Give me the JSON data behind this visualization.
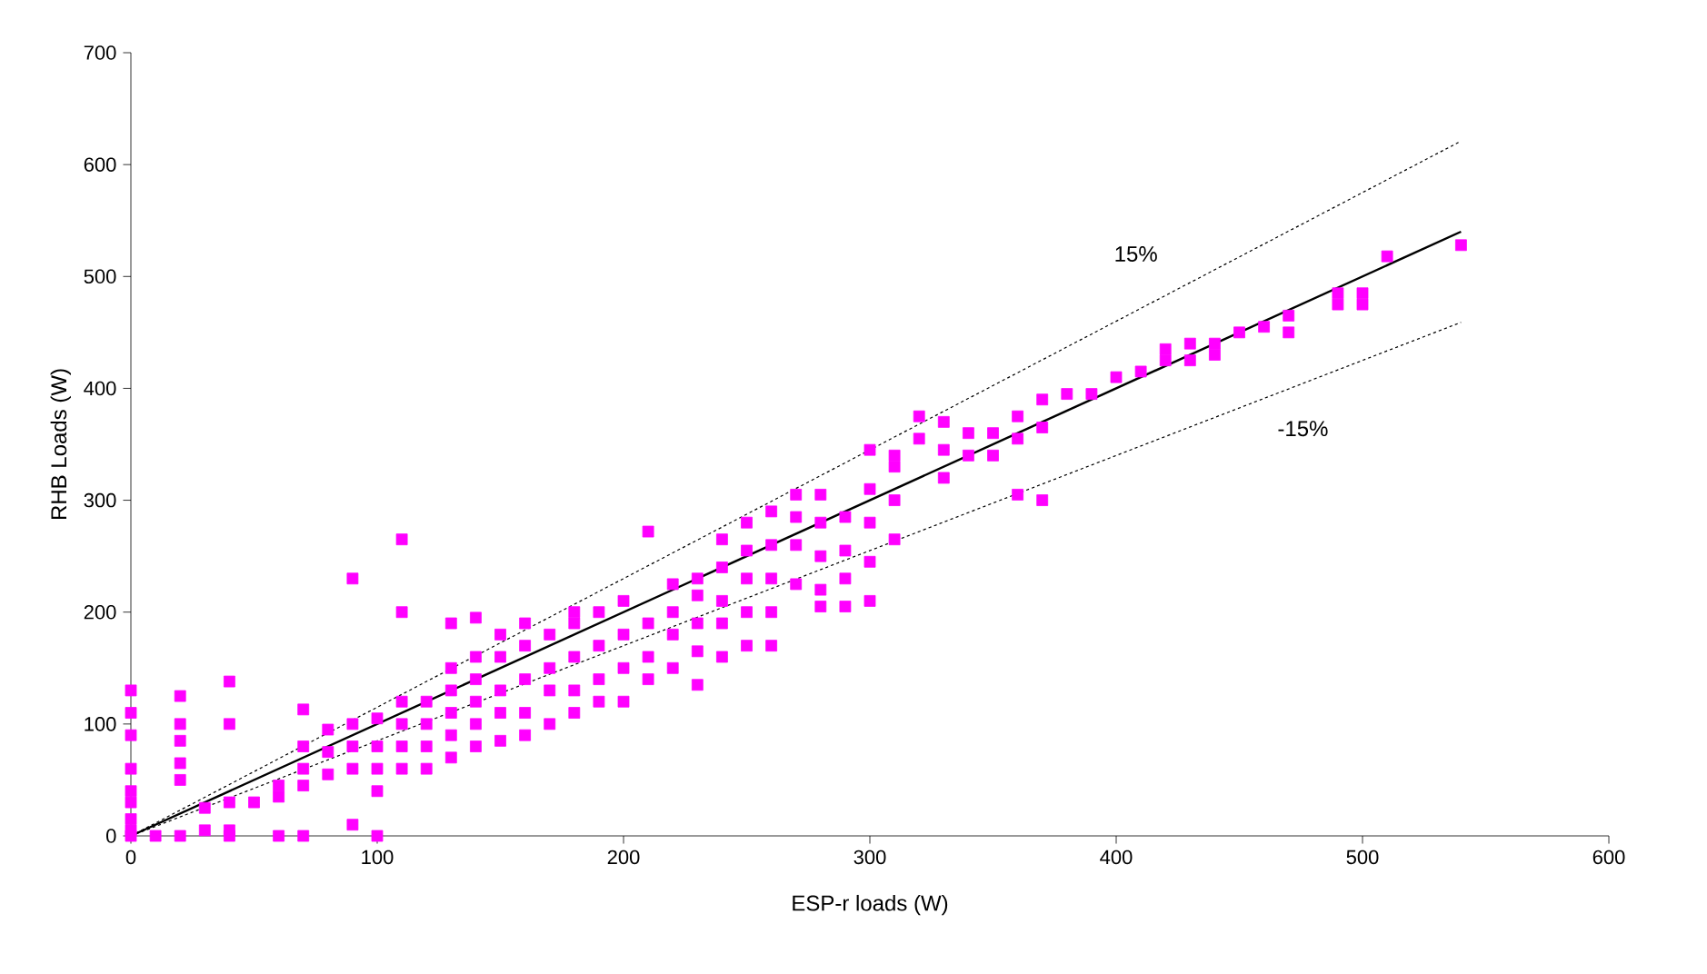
{
  "chart_data": {
    "type": "scatter",
    "xlabel": "ESP-r loads (W)",
    "ylabel": "RHB Loads (W)",
    "xlim": [
      0,
      600
    ],
    "ylim": [
      0,
      700
    ],
    "xticks": [
      0,
      100,
      200,
      300,
      400,
      500,
      600
    ],
    "yticks": [
      0,
      100,
      200,
      300,
      400,
      500,
      600,
      700
    ],
    "grid": false,
    "series": [
      {
        "color": "#ff00ff",
        "marker": "square",
        "x": [
          0,
          0,
          0,
          0,
          0,
          0,
          0,
          0,
          0,
          10,
          20,
          20,
          20,
          20,
          20,
          20,
          30,
          30,
          40,
          40,
          40,
          40,
          40,
          50,
          60,
          60,
          60,
          70,
          70,
          70,
          70,
          70,
          80,
          80,
          80,
          90,
          90,
          90,
          90,
          90,
          100,
          100,
          100,
          100,
          100,
          110,
          110,
          110,
          110,
          110,
          110,
          120,
          120,
          120,
          120,
          130,
          130,
          130,
          130,
          130,
          130,
          140,
          140,
          140,
          140,
          140,
          140,
          150,
          150,
          150,
          150,
          150,
          160,
          160,
          160,
          160,
          160,
          170,
          170,
          170,
          170,
          180,
          180,
          180,
          180,
          180,
          190,
          190,
          190,
          190,
          200,
          200,
          200,
          200,
          210,
          210,
          210,
          210,
          220,
          220,
          220,
          220,
          230,
          230,
          230,
          230,
          230,
          240,
          240,
          240,
          240,
          240,
          250,
          250,
          250,
          250,
          250,
          260,
          260,
          260,
          260,
          260,
          270,
          270,
          270,
          270,
          280,
          280,
          280,
          280,
          280,
          290,
          290,
          290,
          290,
          300,
          300,
          300,
          300,
          300,
          310,
          310,
          310,
          310,
          320,
          320,
          330,
          330,
          330,
          340,
          340,
          350,
          350,
          360,
          360,
          360,
          370,
          370,
          370,
          380,
          390,
          400,
          410,
          420,
          420,
          430,
          430,
          440,
          440,
          450,
          460,
          470,
          470,
          490,
          490,
          500,
          500,
          510,
          540
        ],
        "values": [
          0,
          5,
          15,
          30,
          40,
          60,
          90,
          110,
          130,
          0,
          0,
          50,
          65,
          85,
          100,
          125,
          5,
          25,
          0,
          5,
          30,
          100,
          138,
          30,
          0,
          35,
          45,
          0,
          45,
          60,
          80,
          113,
          55,
          75,
          95,
          10,
          60,
          80,
          100,
          230,
          0,
          40,
          60,
          80,
          105,
          60,
          80,
          100,
          120,
          200,
          265,
          60,
          80,
          100,
          120,
          70,
          90,
          110,
          130,
          150,
          190,
          80,
          100,
          120,
          140,
          160,
          195,
          85,
          110,
          130,
          160,
          180,
          90,
          110,
          140,
          170,
          190,
          100,
          130,
          150,
          180,
          110,
          130,
          160,
          190,
          200,
          120,
          140,
          170,
          200,
          120,
          150,
          180,
          210,
          140,
          160,
          190,
          272,
          150,
          180,
          200,
          225,
          135,
          165,
          190,
          215,
          230,
          160,
          190,
          210,
          240,
          265,
          170,
          200,
          230,
          255,
          280,
          170,
          200,
          230,
          260,
          290,
          225,
          260,
          285,
          305,
          205,
          220,
          250,
          280,
          305,
          205,
          230,
          255,
          285,
          210,
          245,
          280,
          310,
          345,
          265,
          300,
          330,
          340,
          355,
          375,
          320,
          345,
          370,
          340,
          360,
          340,
          360,
          305,
          355,
          375,
          300,
          365,
          390,
          395,
          395,
          410,
          415,
          425,
          435,
          425,
          440,
          430,
          440,
          450,
          455,
          450,
          465,
          475,
          485,
          475,
          485,
          518,
          528
        ]
      },
      {
        "type": "line",
        "color": "#000000",
        "line_style": "solid",
        "x": [
          0,
          540
        ],
        "values": [
          0,
          540
        ]
      },
      {
        "type": "line",
        "color": "#000000",
        "line_style": "dotted",
        "x": [
          0,
          540
        ],
        "values": [
          0,
          621
        ]
      },
      {
        "type": "line",
        "color": "#000000",
        "line_style": "dotted",
        "x": [
          0,
          540
        ],
        "values": [
          0,
          459
        ]
      }
    ],
    "annotations": [
      "15%",
      "-15%"
    ]
  }
}
